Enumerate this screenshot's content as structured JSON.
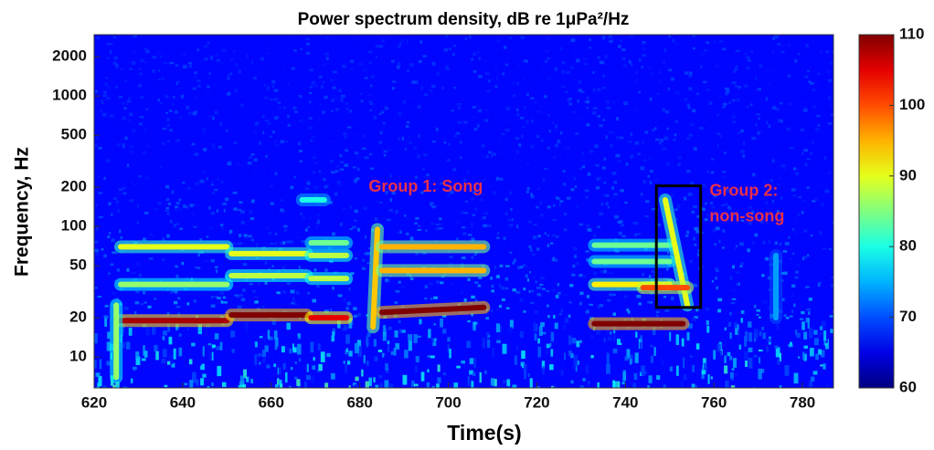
{
  "chart_data": {
    "type": "spectrogram",
    "title": "Power spectrum density, dB re 1μPa²/Hz",
    "xlabel": "Time(s)",
    "ylabel": "Frequency, Hz",
    "xlim": [
      620,
      787
    ],
    "xticks": [
      620,
      640,
      660,
      680,
      700,
      720,
      740,
      760,
      780
    ],
    "ylim": [
      5.8,
      2950
    ],
    "log_y": true,
    "yticks": [
      10,
      20,
      50,
      100,
      200,
      500,
      1000,
      2000
    ],
    "clim": [
      60,
      110
    ],
    "cticks": [
      60,
      70,
      80,
      90,
      100,
      110
    ],
    "colormap": "jet",
    "tones": [
      {
        "t": [
          626,
          650
        ],
        "f": [
          19,
          19
        ],
        "level": 108
      },
      {
        "t": [
          626,
          650
        ],
        "f": [
          36,
          36
        ],
        "level": 86
      },
      {
        "t": [
          626,
          650
        ],
        "f": [
          70,
          70
        ],
        "level": 90
      },
      {
        "t": [
          651,
          668
        ],
        "f": [
          21,
          21
        ],
        "level": 110
      },
      {
        "t": [
          651,
          668
        ],
        "f": [
          42,
          42
        ],
        "level": 88
      },
      {
        "t": [
          651,
          668
        ],
        "f": [
          62,
          62
        ],
        "level": 90
      },
      {
        "t": [
          669,
          677
        ],
        "f": [
          20,
          20
        ],
        "level": 105
      },
      {
        "t": [
          669,
          677
        ],
        "f": [
          40,
          40
        ],
        "level": 88
      },
      {
        "t": [
          669,
          677
        ],
        "f": [
          60,
          60
        ],
        "level": 88
      },
      {
        "t": [
          669,
          677
        ],
        "f": [
          75,
          75
        ],
        "level": 84
      },
      {
        "t": [
          683,
          684
        ],
        "f": [
          17,
          95
        ],
        "level": 94
      },
      {
        "t": [
          685,
          708
        ],
        "f": [
          22,
          24
        ],
        "level": 110
      },
      {
        "t": [
          685,
          708
        ],
        "f": [
          46,
          46
        ],
        "level": 95
      },
      {
        "t": [
          685,
          708
        ],
        "f": [
          70,
          70
        ],
        "level": 95
      },
      {
        "t": [
          733,
          753
        ],
        "f": [
          18,
          18
        ],
        "level": 110
      },
      {
        "t": [
          733,
          750
        ],
        "f": [
          36,
          36
        ],
        "level": 92
      },
      {
        "t": [
          733,
          750
        ],
        "f": [
          54,
          54
        ],
        "level": 84
      },
      {
        "t": [
          733,
          750
        ],
        "f": [
          72,
          72
        ],
        "level": 84
      },
      {
        "t": [
          749,
          754
        ],
        "f": [
          160,
          25
        ],
        "level": 90
      },
      {
        "t": [
          744,
          754
        ],
        "f": [
          34,
          34
        ],
        "level": 100
      },
      {
        "t": [
          667,
          672
        ],
        "f": [
          160,
          160
        ],
        "level": 80
      },
      {
        "t": [
          625,
          625
        ],
        "f": [
          7,
          25
        ],
        "level": 86
      },
      {
        "t": [
          774,
          774
        ],
        "f": [
          20,
          60
        ],
        "level": 74
      }
    ],
    "box": {
      "t": [
        747,
        757
      ],
      "f": [
        24,
        205
      ]
    },
    "annotations": [
      {
        "text": [
          "Group 1: Song"
        ],
        "x": 682,
        "y": 200,
        "color": "#e8304a"
      },
      {
        "text": [
          "Group 2:",
          "non-song"
        ],
        "x": 759,
        "y": 185,
        "color": "#e8304a"
      }
    ]
  }
}
